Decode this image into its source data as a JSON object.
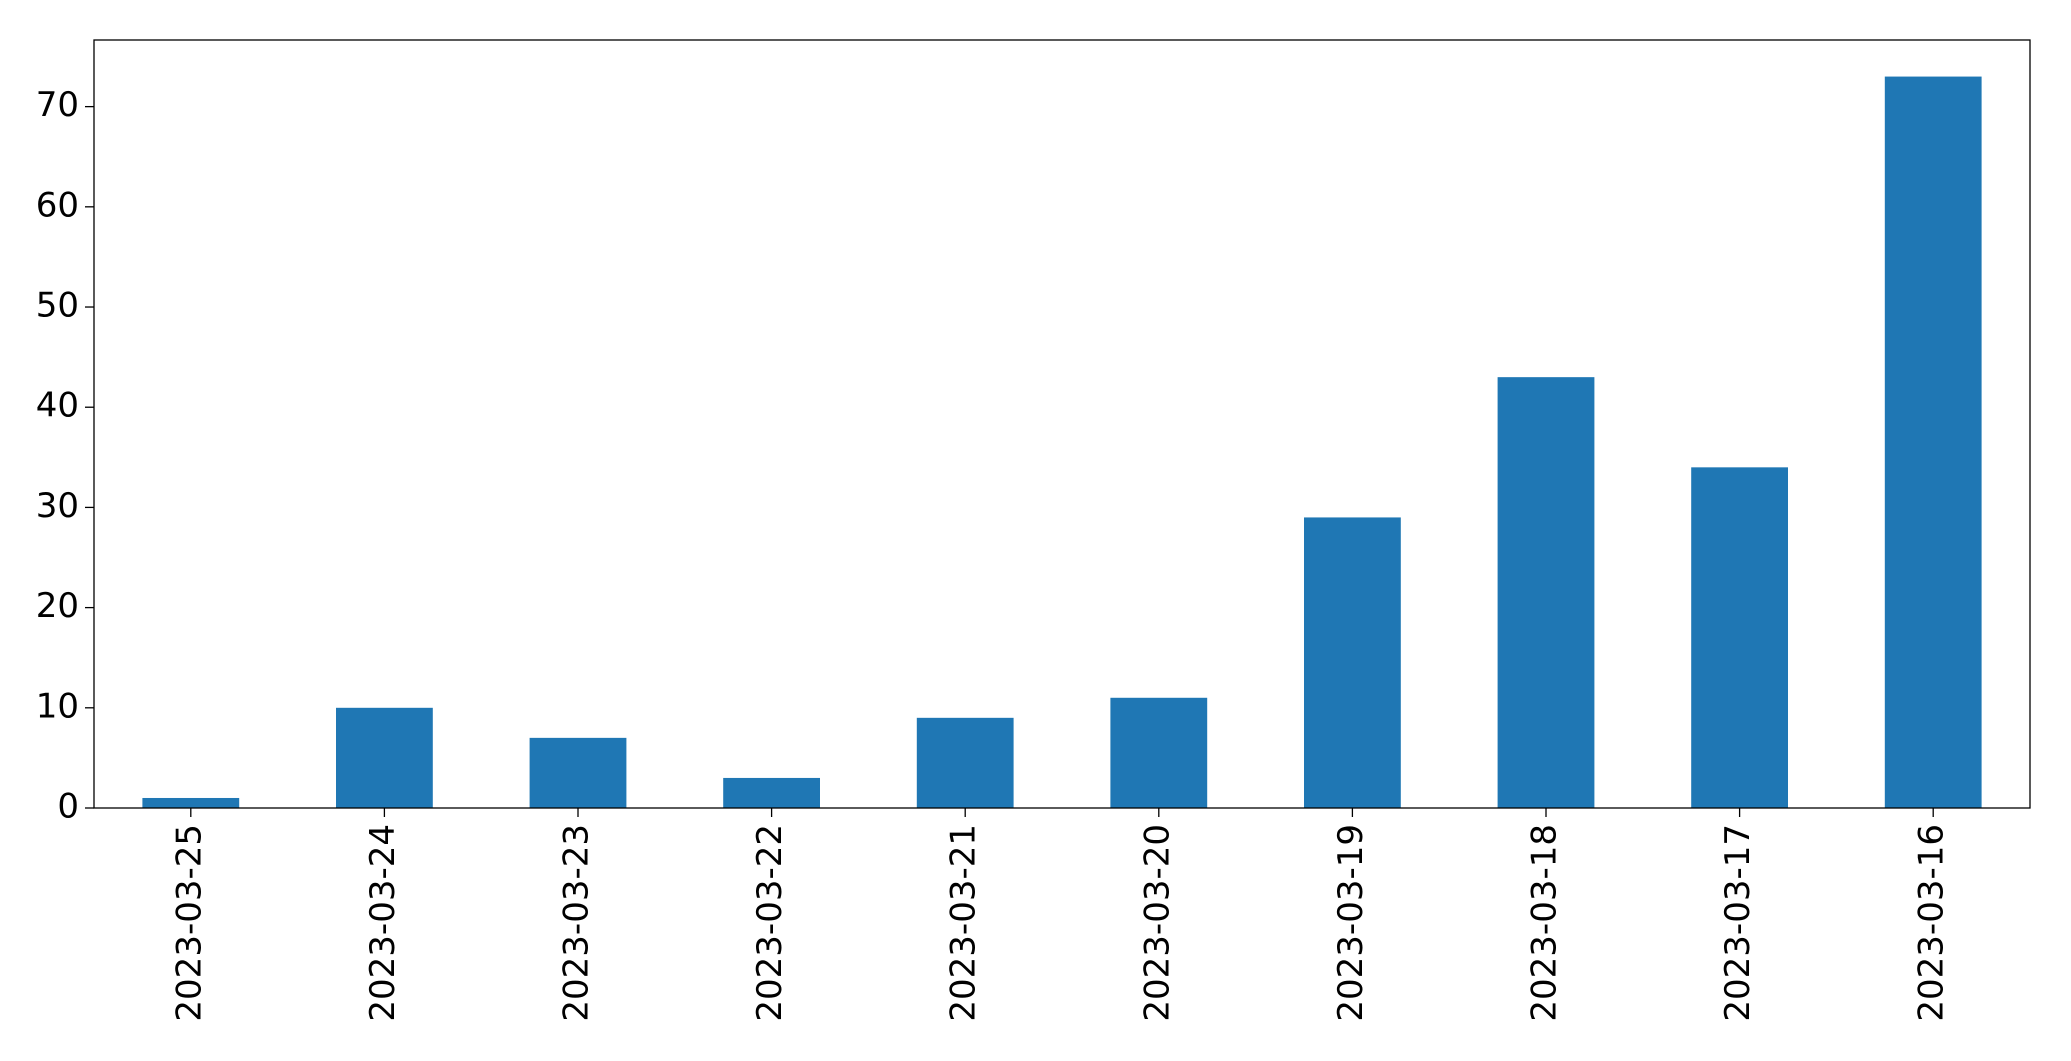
{
  "chart_data": {
    "type": "bar",
    "categories": [
      "2023-03-25",
      "2023-03-24",
      "2023-03-23",
      "2023-03-22",
      "2023-03-21",
      "2023-03-20",
      "2023-03-19",
      "2023-03-18",
      "2023-03-17",
      "2023-03-16"
    ],
    "values": [
      1,
      10,
      7,
      3,
      9,
      11,
      29,
      43,
      34,
      73
    ],
    "color": "#1f77b4",
    "ylim": [
      0,
      76.65
    ],
    "yticks": [
      0,
      10,
      20,
      30,
      40,
      50,
      60,
      70
    ],
    "grid": false
  }
}
